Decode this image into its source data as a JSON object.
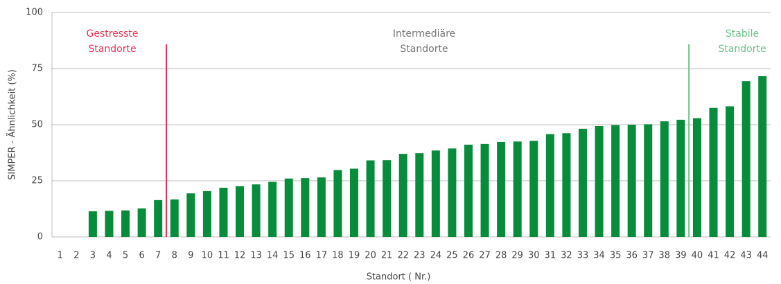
{
  "chart_data": {
    "type": "bar",
    "xlabel": "Standort  ( Nr.)",
    "ylabel": "SIMPER - Ähnlichkeit  (%)",
    "categories": [
      "1",
      "2",
      "3",
      "4",
      "5",
      "6",
      "7",
      "8",
      "9",
      "10",
      "11",
      "12",
      "13",
      "14",
      "15",
      "16",
      "17",
      "18",
      "19",
      "20",
      "21",
      "22",
      "23",
      "24",
      "25",
      "26",
      "27",
      "28",
      "29",
      "30",
      "31",
      "32",
      "33",
      "34",
      "35",
      "36",
      "37",
      "38",
      "39",
      "40",
      "41",
      "42",
      "43",
      "44"
    ],
    "values": [
      null,
      null,
      11.4,
      11.6,
      11.8,
      12.7,
      16.4,
      16.7,
      19.4,
      20.4,
      21.9,
      22.6,
      23.4,
      24.5,
      26,
      26.2,
      26.5,
      29.8,
      30.4,
      34.1,
      34.2,
      37,
      37.3,
      38.5,
      39.4,
      41.1,
      41.4,
      42.3,
      42.5,
      42.8,
      45.8,
      46.2,
      48.2,
      49.4,
      49.8,
      50,
      50.2,
      51.5,
      52.2,
      52.9,
      57.5,
      58.2,
      69.4,
      71.6
    ],
    "color": "#078c3c",
    "ylim": [
      0,
      100
    ],
    "yticks": [
      0,
      25,
      50,
      75,
      100
    ],
    "grid": true,
    "annotations": [
      {
        "lines": [
          "Gestresste",
          "Standorte"
        ],
        "color": "#e8335a"
      },
      {
        "lines": [
          "Intermediäre",
          "Standorte"
        ],
        "color": "#777777"
      },
      {
        "lines": [
          "Stabile",
          "Standorte"
        ],
        "color": "#6cc18a"
      }
    ]
  }
}
